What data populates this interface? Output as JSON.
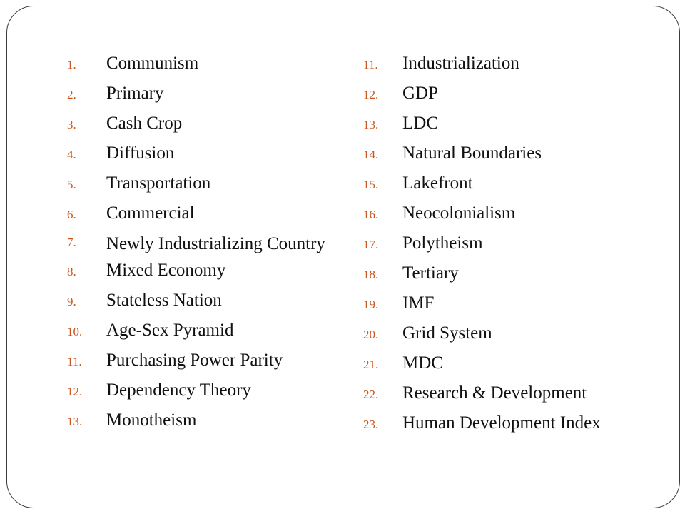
{
  "left_list": [
    {
      "num": "1.",
      "label": "Communism"
    },
    {
      "num": "2.",
      "label": "Primary"
    },
    {
      "num": "3.",
      "label": "Cash Crop"
    },
    {
      "num": "4.",
      "label": "Diffusion"
    },
    {
      "num": "5.",
      "label": "Transportation"
    },
    {
      "num": "6.",
      "label": "Commercial"
    },
    {
      "num": "7.",
      "label": "Newly Industrializing Country"
    },
    {
      "num": "8.",
      "label": "Mixed Economy"
    },
    {
      "num": "9.",
      "label": "Stateless Nation"
    },
    {
      "num": "10.",
      "label": "Age-Sex Pyramid"
    },
    {
      "num": "11.",
      "label": "Purchasing Power Parity"
    },
    {
      "num": "12.",
      "label": "Dependency Theory"
    },
    {
      "num": "13.",
      "label": "Monotheism"
    }
  ],
  "right_list": [
    {
      "num": "11.",
      "label": "Industrialization"
    },
    {
      "num": "12.",
      "label": "GDP"
    },
    {
      "num": "13.",
      "label": "LDC"
    },
    {
      "num": "14.",
      "label": "Natural Boundaries"
    },
    {
      "num": "15.",
      "label": "Lakefront"
    },
    {
      "num": "16.",
      "label": "Neocolonialism"
    },
    {
      "num": "17.",
      "label": "Polytheism"
    },
    {
      "num": "18.",
      "label": "Tertiary"
    },
    {
      "num": "19.",
      "label": "IMF"
    },
    {
      "num": "20.",
      "label": "Grid System"
    },
    {
      "num": "21.",
      "label": "MDC"
    },
    {
      "num": "22.",
      "label": "Research & Development"
    },
    {
      "num": "23.",
      "label": "Human Development Index"
    }
  ],
  "colors": {
    "number": "#c8561e",
    "text": "#111111",
    "border": "#3a3a3a"
  }
}
